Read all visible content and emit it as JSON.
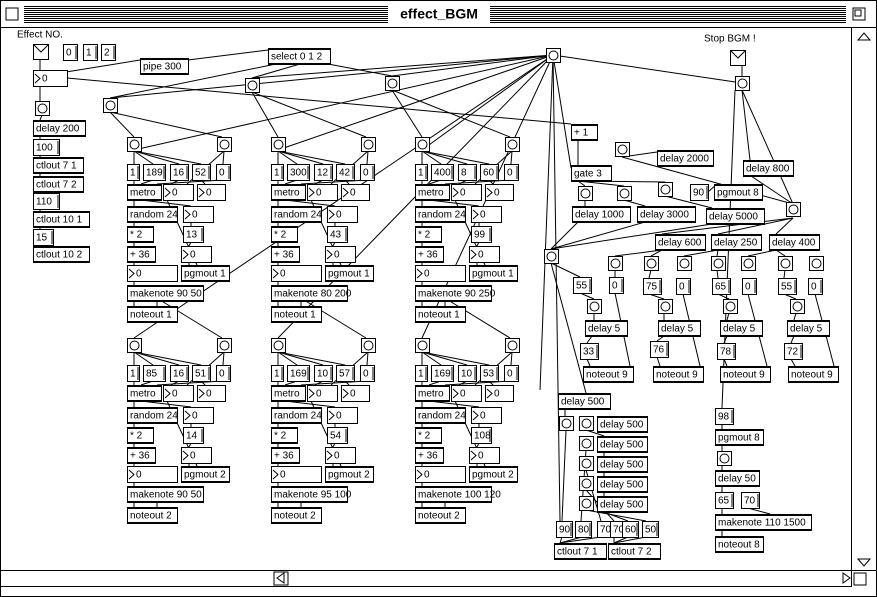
{
  "window": {
    "title": "effect_BGM"
  },
  "boxes": [
    "Effect NO.",
    "0",
    "1",
    "2",
    "0",
    "pipe 300",
    "select 0 1 2",
    "delay 200",
    "100",
    "ctlout 7 1",
    "ctlout 7 2",
    "110",
    "ctlout 10 1",
    "15",
    "ctlout 10 2",
    "Stop BGM !",
    "+ 1",
    "delay 2000",
    "gate 3",
    "delay 800",
    "90",
    "pgmout 8",
    "delay 1000",
    "delay 3000",
    "delay 5000",
    "delay 600",
    "delay 250",
    "delay 400",
    "55",
    "0",
    "75",
    "0",
    "65",
    "0",
    "55",
    "0",
    "delay 5",
    "delay 5",
    "delay 5",
    "delay 5",
    "33",
    "76",
    "78",
    "72",
    "noteout 9",
    "noteout 9",
    "noteout 9",
    "noteout 9",
    "delay 500",
    "delay 500",
    "delay 500",
    "delay 500",
    "delay 500",
    "delay 500",
    "98",
    "pgmout 8",
    "delay 50",
    "65",
    "70",
    "makenote 110 1500",
    "90",
    "80",
    "70",
    "70",
    "60",
    "50",
    "ctlout 7 1",
    "ctlout 7 2",
    "noteout 8"
  ],
  "groups": [
    [
      "1",
      "189",
      "16",
      "52",
      "0",
      "metro",
      "0",
      "0",
      "random 24",
      "0",
      "* 2",
      "13",
      "+ 36",
      "0",
      "0",
      "pgmout 1",
      "makenote 90 50",
      "noteout 1"
    ],
    [
      "1",
      "300",
      "12",
      "42",
      "0",
      "metro",
      "0",
      "0",
      "random 24",
      "0",
      "* 2",
      "43",
      "+ 36",
      "0",
      "0",
      "pgmout 1",
      "makenote 80 200",
      "noteout 1"
    ],
    [
      "1",
      "400",
      "8",
      "60",
      "0",
      "metro",
      "0",
      "0",
      "random 24",
      "0",
      "* 2",
      "99",
      "+ 36",
      "0",
      "0",
      "pgmout 1",
      "makenote 90 250",
      "noteout 1"
    ],
    [
      "1",
      "85",
      "16",
      "51",
      "0",
      "metro",
      "0",
      "0",
      "random 24",
      "0",
      "* 2",
      "14",
      "+ 36",
      "0",
      "0",
      "pgmout 2",
      "makenote 90 50",
      "noteout 2"
    ],
    [
      "1",
      "169",
      "10",
      "57",
      "0",
      "metro",
      "0",
      "0",
      "random 24",
      "0",
      "* 2",
      "54",
      "+ 36",
      "0",
      "0",
      "pgmout 2",
      "makenote 95 100",
      "noteout 2"
    ],
    [
      "1",
      "169",
      "10",
      "53",
      "0",
      "metro",
      "0",
      "0",
      "random 24",
      "0",
      "* 2",
      "108",
      "+ 36",
      "0",
      "0",
      "pgmout 2",
      "makenote 100 120",
      "noteout 2"
    ]
  ]
}
